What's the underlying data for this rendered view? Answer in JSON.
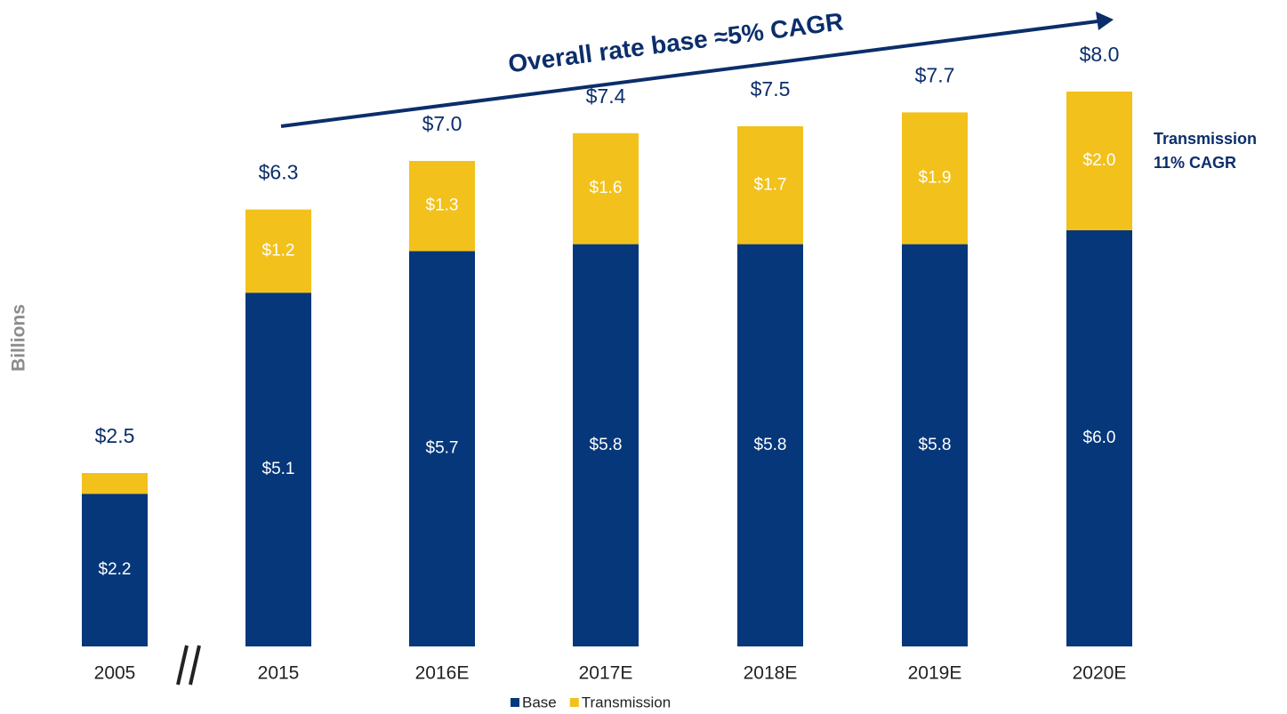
{
  "chart_data": {
    "type": "stacked_bar",
    "title": "Overall rate base ≈5% CAGR",
    "y_label": "Billions",
    "side_note": [
      "Transmission",
      "11% CAGR"
    ],
    "categories": [
      "2005",
      "2015",
      "2016E",
      "2017E",
      "2018E",
      "2019E",
      "2020E"
    ],
    "series": [
      {
        "name": "Base",
        "color": "#05377a",
        "values": [
          2.2,
          5.1,
          5.7,
          5.8,
          5.8,
          5.8,
          6.0
        ],
        "value_labels": [
          "$2.2",
          "$5.1",
          "$5.7",
          "$5.8",
          "$5.8",
          "$5.8",
          "$6.0"
        ]
      },
      {
        "name": "Transmission",
        "color": "#f2c11c",
        "values": [
          0.3,
          1.2,
          1.3,
          1.6,
          1.7,
          1.9,
          2.0
        ],
        "value_labels": [
          null,
          "$1.2",
          "$1.3",
          "$1.6",
          "$1.7",
          "$1.9",
          "$2.0"
        ]
      }
    ],
    "totals": [
      2.5,
      6.3,
      7.0,
      7.4,
      7.5,
      7.7,
      8.0
    ],
    "total_labels": [
      "$2.5",
      "$6.3",
      "$7.0",
      "$7.4",
      "$7.5",
      "$7.7",
      "$8.0"
    ]
  }
}
